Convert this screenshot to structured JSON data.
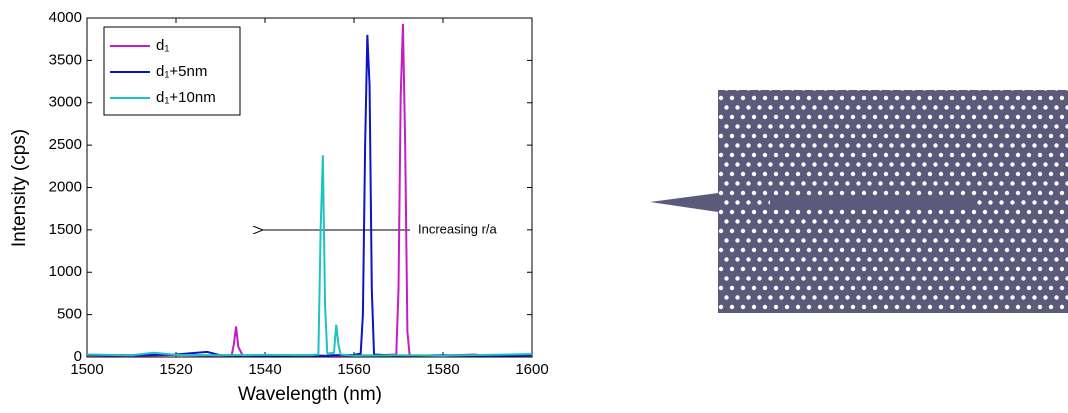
{
  "chart_data": {
    "type": "line",
    "xlabel": "Wavelength (nm)",
    "ylabel": "Intensity (cps)",
    "annotation": "Increasing r/a",
    "xlim": [
      1500,
      1600
    ],
    "xticks": [
      1500,
      1520,
      1540,
      1560,
      1580,
      1600
    ],
    "ylim": [
      0,
      4000
    ],
    "yticks": [
      0,
      500,
      1000,
      1500,
      2000,
      2500,
      3000,
      3500,
      4000
    ],
    "grid": false,
    "legend": "upper left",
    "series": [
      {
        "name": "d₁",
        "color": "#c21ec2",
        "x": [
          1500,
          1510,
          1520,
          1530,
          1532.5,
          1533,
          1533.5,
          1534,
          1535,
          1545,
          1555,
          1565,
          1569.5,
          1570,
          1570.5,
          1571,
          1571.5,
          1572,
          1572.5,
          1580,
          1587,
          1590,
          1600
        ],
        "values": [
          20,
          15,
          25,
          15,
          20,
          150,
          360,
          120,
          15,
          20,
          15,
          20,
          30,
          800,
          3100,
          3930,
          2500,
          300,
          20,
          15,
          30,
          15,
          20
        ]
      },
      {
        "name": "d₁+5nm",
        "color": "#0a14c8",
        "x": [
          1500,
          1510,
          1520,
          1527,
          1530,
          1540,
          1550,
          1554,
          1555,
          1560,
          1561.5,
          1562,
          1562.5,
          1563,
          1563.5,
          1564,
          1564.5,
          1570,
          1580,
          1590,
          1600
        ],
        "values": [
          25,
          20,
          30,
          60,
          20,
          15,
          20,
          10,
          20,
          25,
          40,
          500,
          2500,
          3800,
          3200,
          800,
          30,
          15,
          20,
          15,
          20
        ]
      },
      {
        "name": "d₁+10nm",
        "color": "#1ec2c2",
        "x": [
          1500,
          1510,
          1515,
          1520,
          1530,
          1540,
          1550,
          1552,
          1552.5,
          1553,
          1553.5,
          1554,
          1555.5,
          1556,
          1556.5,
          1557,
          1560,
          1570,
          1580,
          1590,
          1600
        ],
        "values": [
          30,
          20,
          50,
          25,
          20,
          25,
          20,
          30,
          1500,
          2380,
          600,
          40,
          50,
          380,
          150,
          30,
          15,
          20,
          15,
          25,
          35
        ]
      }
    ]
  }
}
